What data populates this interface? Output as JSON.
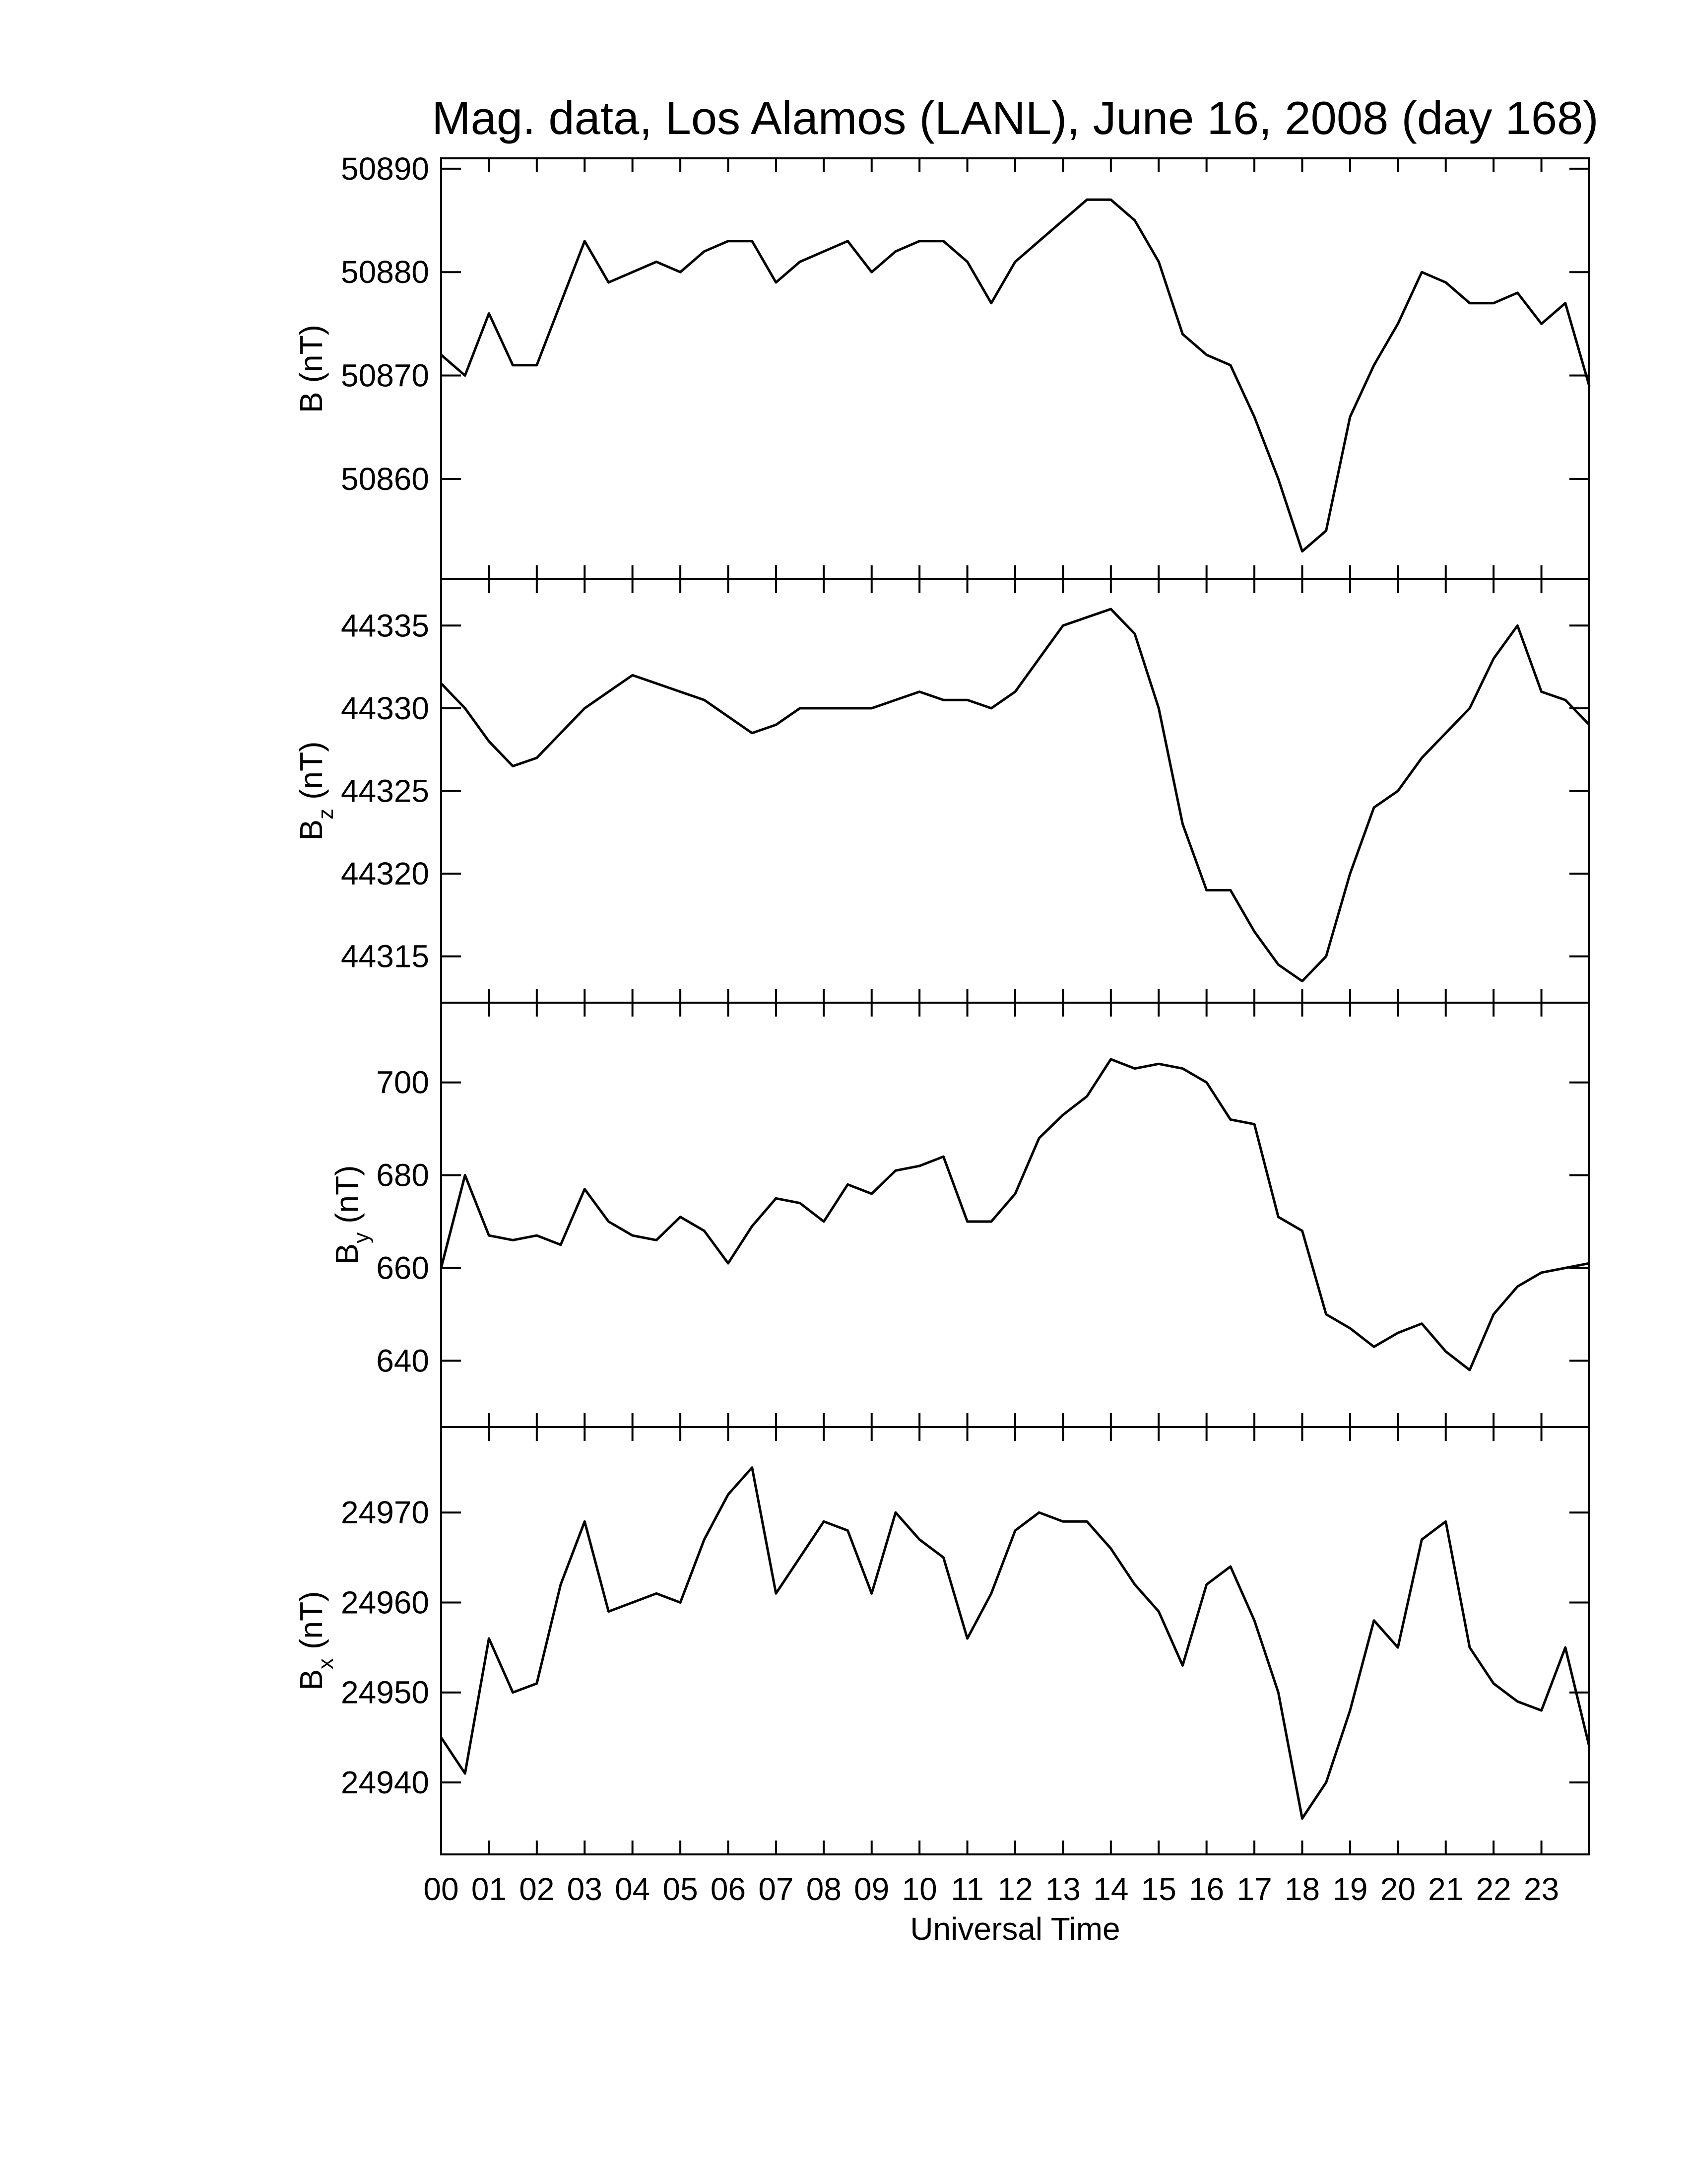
{
  "chart_data": [
    {
      "type": "line",
      "title": "Mag. data, Los Alamos (LANL), June 16, 2008 (day 168)",
      "ylabel": "B",
      "ylabel_unit": "(nT)",
      "color": "#000000",
      "xlim": [
        0,
        24
      ],
      "ylim": [
        50850.3,
        50891
      ],
      "yticks": [
        50860,
        50870,
        50880,
        50890
      ],
      "x": [
        0,
        0.5,
        1,
        1.5,
        2,
        2.5,
        3,
        3.5,
        4,
        4.5,
        5,
        5.5,
        6,
        6.5,
        7,
        7.5,
        8,
        8.5,
        9,
        9.5,
        10,
        10.5,
        11,
        11.5,
        12,
        12.5,
        13,
        13.5,
        14,
        14.5,
        15,
        15.5,
        16,
        16.5,
        17,
        17.5,
        18,
        18.5,
        19,
        19.5,
        20,
        20.5,
        21,
        21.5,
        22,
        22.5,
        23,
        23.5,
        24
      ],
      "values": [
        50872,
        50870,
        50876,
        50871,
        50871,
        50877,
        50883,
        50879,
        50880,
        50881,
        50880,
        50882,
        50883,
        50883,
        50879,
        50881,
        50882,
        50883,
        50880,
        50882,
        50883,
        50883,
        50881,
        50877,
        50881,
        50883,
        50885,
        50887,
        50887,
        50885,
        50881,
        50874,
        50872,
        50871,
        50866,
        50860,
        50853,
        50855,
        50866,
        50871,
        50875,
        50880,
        50879,
        50877,
        50877,
        50878,
        50875,
        50877,
        50869
      ]
    },
    {
      "type": "line",
      "ylabel": "B",
      "ylabel_sub": "z",
      "ylabel_unit": "(nT)",
      "color": "#000000",
      "xlim": [
        0,
        24
      ],
      "ylim": [
        44312.2,
        44337.8
      ],
      "yticks": [
        44315,
        44320,
        44325,
        44330,
        44335
      ],
      "x": [
        0,
        0.5,
        1,
        1.5,
        2,
        2.5,
        3,
        3.5,
        4,
        4.5,
        5,
        5.5,
        6,
        6.5,
        7,
        7.5,
        8,
        8.5,
        9,
        9.5,
        10,
        10.5,
        11,
        11.5,
        12,
        12.5,
        13,
        13.5,
        14,
        14.5,
        15,
        15.5,
        16,
        16.5,
        17,
        17.5,
        18,
        18.5,
        19,
        19.5,
        20,
        20.5,
        21,
        21.5,
        22,
        22.5,
        23,
        23.5,
        24
      ],
      "values": [
        44331.5,
        44330,
        44328,
        44326.5,
        44327,
        44328.5,
        44330,
        44331,
        44332,
        44331.5,
        44331,
        44330.5,
        44329.5,
        44328.5,
        44329,
        44330,
        44330,
        44330,
        44330,
        44330.5,
        44331,
        44330.5,
        44330.5,
        44330,
        44331,
        44333,
        44335,
        44335.5,
        44336,
        44334.5,
        44330,
        44323,
        44319,
        44319,
        44316.5,
        44314.5,
        44313.5,
        44315,
        44320,
        44324,
        44325,
        44327,
        44328.5,
        44330,
        44333,
        44335,
        44331,
        44330.5,
        44329
      ]
    },
    {
      "type": "line",
      "ylabel": "B",
      "ylabel_sub": "y",
      "ylabel_unit": "(nT)",
      "color": "#000000",
      "xlim": [
        0,
        24
      ],
      "ylim": [
        625.7,
        717.2
      ],
      "yticks": [
        640,
        660,
        680,
        700
      ],
      "x": [
        0,
        0.5,
        1,
        1.5,
        2,
        2.5,
        3,
        3.5,
        4,
        4.5,
        5,
        5.5,
        6,
        6.5,
        7,
        7.5,
        8,
        8.5,
        9,
        9.5,
        10,
        10.5,
        11,
        11.5,
        12,
        12.5,
        13,
        13.5,
        14,
        14.5,
        15,
        15.5,
        16,
        16.5,
        17,
        17.5,
        18,
        18.5,
        19,
        19.5,
        20,
        20.5,
        21,
        21.5,
        22,
        22.5,
        23,
        23.5,
        24
      ],
      "values": [
        660,
        680,
        667,
        666,
        667,
        665,
        677,
        670,
        667,
        666,
        671,
        668,
        661,
        669,
        675,
        674,
        670,
        678,
        676,
        681,
        682,
        684,
        670,
        670,
        676,
        688,
        693,
        697,
        705,
        703,
        704,
        703,
        700,
        692,
        691,
        671,
        668,
        650,
        647,
        643,
        646,
        648,
        642,
        638,
        650,
        656,
        659,
        660,
        661
      ]
    },
    {
      "type": "line",
      "ylabel": "B",
      "ylabel_sub": "x",
      "ylabel_unit": "(nT)",
      "xlabel": "Universal Time",
      "color": "#000000",
      "xlim": [
        0,
        24
      ],
      "ylim": [
        24932,
        24979.5
      ],
      "yticks": [
        24940,
        24950,
        24960,
        24970
      ],
      "xticks": [
        {
          "value": 0,
          "label": "00"
        },
        {
          "value": 1,
          "label": "01"
        },
        {
          "value": 2,
          "label": "02"
        },
        {
          "value": 3,
          "label": "03"
        },
        {
          "value": 4,
          "label": "04"
        },
        {
          "value": 5,
          "label": "05"
        },
        {
          "value": 6,
          "label": "06"
        },
        {
          "value": 7,
          "label": "07"
        },
        {
          "value": 8,
          "label": "08"
        },
        {
          "value": 9,
          "label": "09"
        },
        {
          "value": 10,
          "label": "10"
        },
        {
          "value": 11,
          "label": "11"
        },
        {
          "value": 12,
          "label": "12"
        },
        {
          "value": 13,
          "label": "13"
        },
        {
          "value": 14,
          "label": "14"
        },
        {
          "value": 15,
          "label": "15"
        },
        {
          "value": 16,
          "label": "16"
        },
        {
          "value": 17,
          "label": "17"
        },
        {
          "value": 18,
          "label": "18"
        },
        {
          "value": 19,
          "label": "19"
        },
        {
          "value": 20,
          "label": "20"
        },
        {
          "value": 21,
          "label": "21"
        },
        {
          "value": 22,
          "label": "22"
        },
        {
          "value": 23,
          "label": "23"
        }
      ],
      "x": [
        0,
        0.5,
        1,
        1.5,
        2,
        2.5,
        3,
        3.5,
        4,
        4.5,
        5,
        5.5,
        6,
        6.5,
        7,
        7.5,
        8,
        8.5,
        9,
        9.5,
        10,
        10.5,
        11,
        11.5,
        12,
        12.5,
        13,
        13.5,
        14,
        14.5,
        15,
        15.5,
        16,
        16.5,
        17,
        17.5,
        18,
        18.5,
        19,
        19.5,
        20,
        20.5,
        21,
        21.5,
        22,
        22.5,
        23,
        23.5,
        24
      ],
      "values": [
        24945,
        24941,
        24956,
        24950,
        24951,
        24962,
        24969,
        24959,
        24960,
        24961,
        24960,
        24967,
        24972,
        24975,
        24961,
        24965,
        24969,
        24968,
        24961,
        24970,
        24967,
        24965,
        24956,
        24961,
        24968,
        24970,
        24969,
        24969,
        24966,
        24962,
        24959,
        24953,
        24962,
        24964,
        24958,
        24950,
        24936,
        24940,
        24948,
        24958,
        24955,
        24967,
        24969,
        24955,
        24951,
        24949,
        24948,
        24955,
        24944
      ]
    }
  ]
}
